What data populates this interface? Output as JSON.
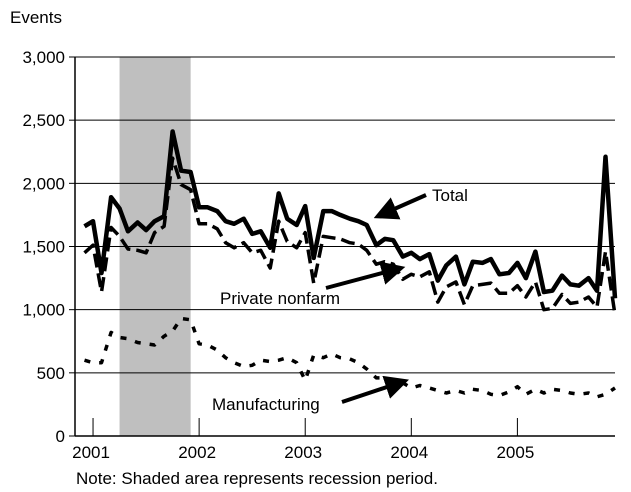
{
  "chart_data": {
    "type": "line",
    "ylabel": "Events",
    "note": "Note: Shaded area represents recession period.",
    "ylim": [
      0,
      3000
    ],
    "yticks": [
      0,
      500,
      1000,
      1500,
      2000,
      2500,
      3000
    ],
    "ytick_labels": [
      "0",
      "500",
      "1,000",
      "1,500",
      "2,000",
      "2,500",
      "3,000"
    ],
    "xlim": [
      2000.83,
      2005.92
    ],
    "xticks": [
      2001,
      2002,
      2003,
      2004,
      2005
    ],
    "xtick_labels": [
      "2001",
      "2002",
      "2003",
      "2004",
      "2005"
    ],
    "grid": "horizontal",
    "legend": "inline-annotations",
    "recession": {
      "start": 2001.25,
      "end": 2001.92,
      "color": "#bfbfbf"
    },
    "x": [
      2000.92,
      2001.0,
      2001.08,
      2001.17,
      2001.25,
      2001.33,
      2001.42,
      2001.5,
      2001.58,
      2001.67,
      2001.75,
      2001.83,
      2001.92,
      2002.0,
      2002.08,
      2002.17,
      2002.25,
      2002.33,
      2002.42,
      2002.5,
      2002.58,
      2002.67,
      2002.75,
      2002.83,
      2002.92,
      2003.0,
      2003.08,
      2003.17,
      2003.25,
      2003.33,
      2003.42,
      2003.5,
      2003.58,
      2003.67,
      2003.75,
      2003.83,
      2003.92,
      2004.0,
      2004.08,
      2004.17,
      2004.25,
      2004.33,
      2004.42,
      2004.5,
      2004.58,
      2004.67,
      2004.75,
      2004.83,
      2004.92,
      2005.0,
      2005.08,
      2005.17,
      2005.25,
      2005.33,
      2005.42,
      2005.5,
      2005.58,
      2005.67,
      2005.75,
      2005.83,
      2005.92
    ],
    "series": [
      {
        "name": "Total",
        "style": "solid",
        "color": "#000000",
        "values": [
          1660,
          1700,
          1290,
          1890,
          1800,
          1620,
          1690,
          1630,
          1700,
          1740,
          2410,
          2100,
          2090,
          1810,
          1810,
          1780,
          1700,
          1680,
          1720,
          1600,
          1620,
          1490,
          1920,
          1720,
          1670,
          1820,
          1410,
          1780,
          1780,
          1750,
          1720,
          1700,
          1670,
          1510,
          1560,
          1550,
          1420,
          1450,
          1400,
          1440,
          1230,
          1350,
          1420,
          1200,
          1380,
          1370,
          1400,
          1280,
          1290,
          1370,
          1250,
          1460,
          1140,
          1150,
          1270,
          1200,
          1190,
          1250,
          1150,
          2210,
          1090
        ]
      },
      {
        "name": "Private nonfarm",
        "style": "dashed",
        "color": "#000000",
        "values": [
          1450,
          1510,
          1140,
          1650,
          1580,
          1480,
          1470,
          1450,
          1610,
          1660,
          2200,
          1990,
          1950,
          1680,
          1680,
          1640,
          1530,
          1490,
          1530,
          1450,
          1470,
          1330,
          1700,
          1540,
          1490,
          1610,
          1210,
          1580,
          1570,
          1560,
          1530,
          1520,
          1470,
          1360,
          1380,
          1360,
          1240,
          1280,
          1260,
          1300,
          1060,
          1180,
          1220,
          1040,
          1190,
          1200,
          1210,
          1130,
          1130,
          1190,
          1100,
          1220,
          1000,
          1010,
          1120,
          1050,
          1060,
          1100,
          1020,
          1460,
          960
        ]
      },
      {
        "name": "Manufacturing",
        "style": "dotted",
        "color": "#000000",
        "values": [
          600,
          580,
          580,
          820,
          780,
          770,
          740,
          730,
          720,
          790,
          830,
          930,
          920,
          730,
          720,
          680,
          620,
          580,
          550,
          560,
          600,
          590,
          600,
          620,
          580,
          440,
          640,
          620,
          650,
          620,
          610,
          580,
          530,
          460,
          460,
          420,
          420,
          380,
          400,
          380,
          360,
          340,
          360,
          340,
          370,
          360,
          330,
          320,
          350,
          390,
          330,
          370,
          340,
          370,
          360,
          340,
          330,
          340,
          310,
          330,
          380
        ]
      }
    ],
    "annotations": [
      {
        "text": "Total",
        "series": "Total"
      },
      {
        "text": "Private nonfarm",
        "series": "Private nonfarm"
      },
      {
        "text": "Manufacturing",
        "series": "Manufacturing"
      }
    ]
  }
}
